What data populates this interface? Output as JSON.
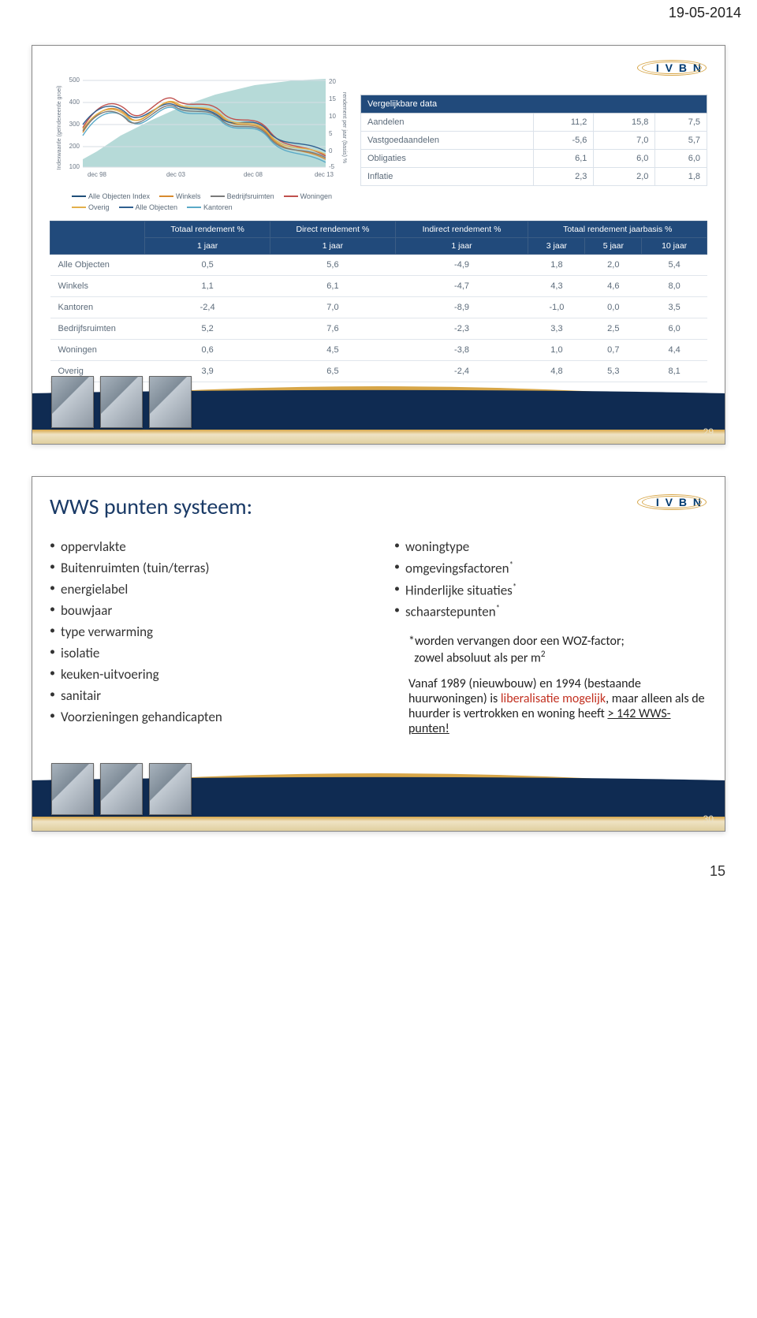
{
  "page": {
    "date": "19-05-2014",
    "number": "15"
  },
  "logo": {
    "text": "I V B N"
  },
  "slide1": {
    "slide_number": "29",
    "chart": {
      "type": "line+area",
      "x_ticks": [
        "dec 98",
        "dec 03",
        "dec 08",
        "dec 13"
      ],
      "y_left_ticks": [
        "100",
        "200",
        "300",
        "400",
        "500"
      ],
      "y_right_ticks": [
        "-5",
        "0",
        "5",
        "10",
        "15",
        "20"
      ],
      "y_left_label": "Indexwaarde (geïndexeerde groei)",
      "y_right_label": "rendement per jaar (basis) %",
      "background": "#a9d3d1",
      "gridline_color": "#d7dde3",
      "series_colors": {
        "AlleObjectenIndex": "#1f4e79",
        "AlleObjecten": "#2f5f8f",
        "Winkels": "#d78a2e",
        "Kantoren": "#5aa9c7",
        "Bedrijfsruimten": "#7a7a7a",
        "Woningen": "#c0504d",
        "Overig": "#e3b04b"
      },
      "legend": [
        "Alle Objecten Index",
        "Winkels",
        "Bedrijfsruimten",
        "Woningen",
        "Overig",
        "Alle Objecten",
        "Kantoren"
      ]
    },
    "comp_table": {
      "header": "Vergelijkbare data",
      "rows": [
        {
          "label": "Aandelen",
          "v1": "11,2",
          "v2": "15,8",
          "v3": "7,5"
        },
        {
          "label": "Vastgoedaandelen",
          "v1": "-5,6",
          "v2": "7,0",
          "v3": "5,7"
        },
        {
          "label": "Obligaties",
          "v1": "6,1",
          "v2": "6,0",
          "v3": "6,0"
        },
        {
          "label": "Inflatie",
          "v1": "2,3",
          "v2": "2,0",
          "v3": "1,8"
        }
      ]
    },
    "main_table": {
      "cols": [
        "",
        "Totaal rendement %",
        "Direct rendement %",
        "Indirect rendement %",
        "Totaal rendement jaarbasis %"
      ],
      "sub_cols": [
        "1 jaar",
        "1 jaar",
        "1 jaar",
        "3 jaar",
        "5 jaar",
        "10 jaar"
      ],
      "rows": [
        {
          "label": "Alle Objecten",
          "v": [
            "0,5",
            "5,6",
            "-4,9",
            "1,8",
            "2,0",
            "5,4"
          ]
        },
        {
          "label": "Winkels",
          "v": [
            "1,1",
            "6,1",
            "-4,7",
            "4,3",
            "4,6",
            "8,0"
          ]
        },
        {
          "label": "Kantoren",
          "v": [
            "-2,4",
            "7,0",
            "-8,9",
            "-1,0",
            "0,0",
            "3,5"
          ]
        },
        {
          "label": "Bedrijfsruimten",
          "v": [
            "5,2",
            "7,6",
            "-2,3",
            "3,3",
            "2,5",
            "6,0"
          ]
        },
        {
          "label": "Woningen",
          "v": [
            "0,6",
            "4,5",
            "-3,8",
            "1,0",
            "0,7",
            "4,4"
          ]
        },
        {
          "label": "Overig",
          "v": [
            "3,9",
            "6,5",
            "-2,4",
            "4,8",
            "5,3",
            "8,1"
          ]
        }
      ]
    }
  },
  "slide2": {
    "slide_number": "30",
    "title": "WWS punten systeem:",
    "left_items": [
      "oppervlakte",
      "Buitenruimten (tuin/terras)",
      "energielabel",
      "bouwjaar",
      "type verwarming",
      "isolatie",
      "keuken-uitvoering",
      "sanitair",
      "Voorzieningen gehandicapten"
    ],
    "right_items": [
      "woningtype",
      "omgevingsfactoren*",
      "Hinderlijke situaties*",
      "schaarstepunten*"
    ],
    "note_line1": "*worden vervangen door een WOZ-factor;",
    "note_line2": "zowel absoluut als per m",
    "note_sup": "2",
    "para2_a": "Vanaf 1989 (nieuwbouw) en 1994 (bestaande huurwoningen) is ",
    "para2_red": "liberalisatie mogelijk",
    "para2_b": ", maar alleen als de huurder is vertrokken en woning heeft ",
    "para2_u": "> 142 WWS-punten!"
  }
}
